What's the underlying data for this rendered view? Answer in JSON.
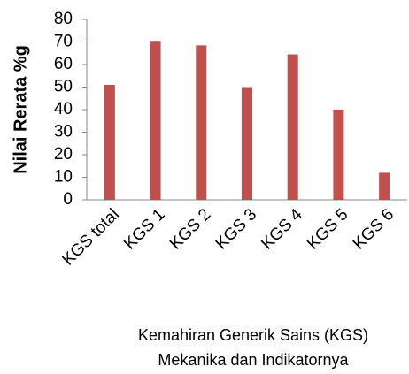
{
  "chart_data": {
    "type": "bar",
    "categories": [
      "KGS total",
      "KGS 1",
      "KGS 2",
      "KGS 3",
      "KGS 4",
      "KGS 5",
      "KGS 6"
    ],
    "values": [
      51,
      70.5,
      68.5,
      50,
      64.5,
      40,
      12
    ],
    "color": "#c0504d",
    "ylabel": "Nilai Rerata %g",
    "xlabel": [
      "Kemahiran Generik Sains (KGS)",
      "Mekanika dan Indikatornya"
    ],
    "ylim": [
      0,
      80
    ],
    "yticks": [
      0,
      10,
      20,
      30,
      40,
      50,
      60,
      70,
      80
    ],
    "grid": false
  }
}
